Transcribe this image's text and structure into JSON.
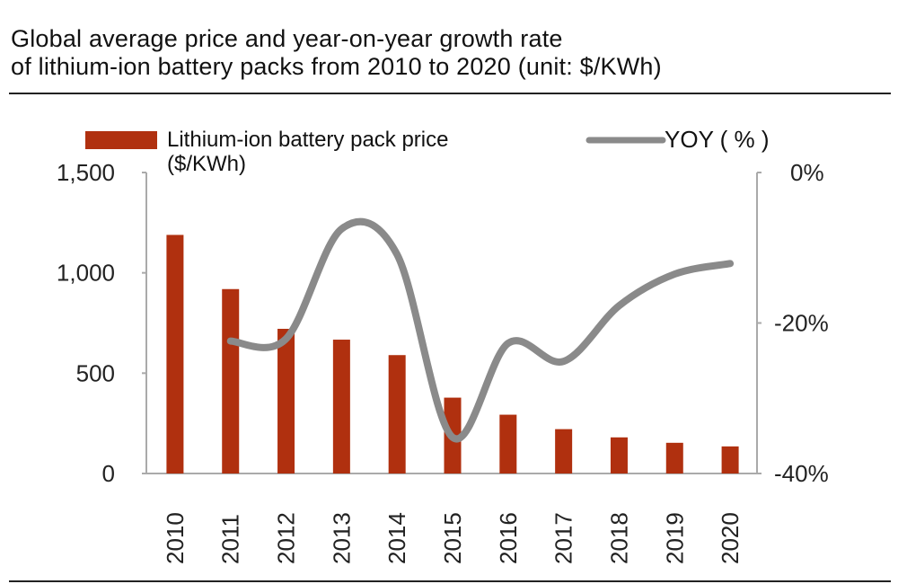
{
  "title_line1": "Global average price and year-on-year growth rate",
  "title_line2": "of lithium-ion battery packs from 2010 to 2020 (unit: $/KWh)",
  "chart_data": {
    "type": "bar+line",
    "title": "Global average price and year-on-year growth rate of lithium-ion battery packs from 2010 to 2020 (unit: $/KWh)",
    "categories": [
      "2010",
      "2011",
      "2012",
      "2013",
      "2014",
      "2015",
      "2016",
      "2017",
      "2018",
      "2019",
      "2020"
    ],
    "series": [
      {
        "name": "Lithium-ion battery pack price ($/KWh)",
        "type": "bar",
        "axis": "left",
        "color": "#b0300f",
        "values": [
          1189,
          919,
          721,
          667,
          590,
          378,
          293,
          221,
          180,
          153,
          135
        ]
      },
      {
        "name": "YOY ( % )",
        "type": "line",
        "axis": "right",
        "color": "#8a8a8a",
        "values": [
          null,
          -22.4,
          -22.1,
          -7.5,
          -10.9,
          -35.2,
          -22.7,
          -25.1,
          -17.7,
          -13.5,
          -12.1
        ]
      }
    ],
    "left_axis": {
      "ylim": [
        0,
        1500
      ],
      "ticks": [
        0,
        500,
        1000,
        1500
      ],
      "tick_labels": [
        "0",
        "500",
        "1,000",
        "1,500"
      ]
    },
    "right_axis": {
      "ylim": [
        -40,
        0
      ],
      "ticks": [
        -40,
        -20,
        0
      ],
      "tick_labels": [
        "-40%",
        "-20%",
        "0%"
      ]
    },
    "legend": {
      "placement": "top",
      "bar_label_line1": "Lithium-ion battery pack price",
      "bar_label_line2": "($/KWh)",
      "line_label": "YOY ( % )"
    },
    "grid": false
  }
}
